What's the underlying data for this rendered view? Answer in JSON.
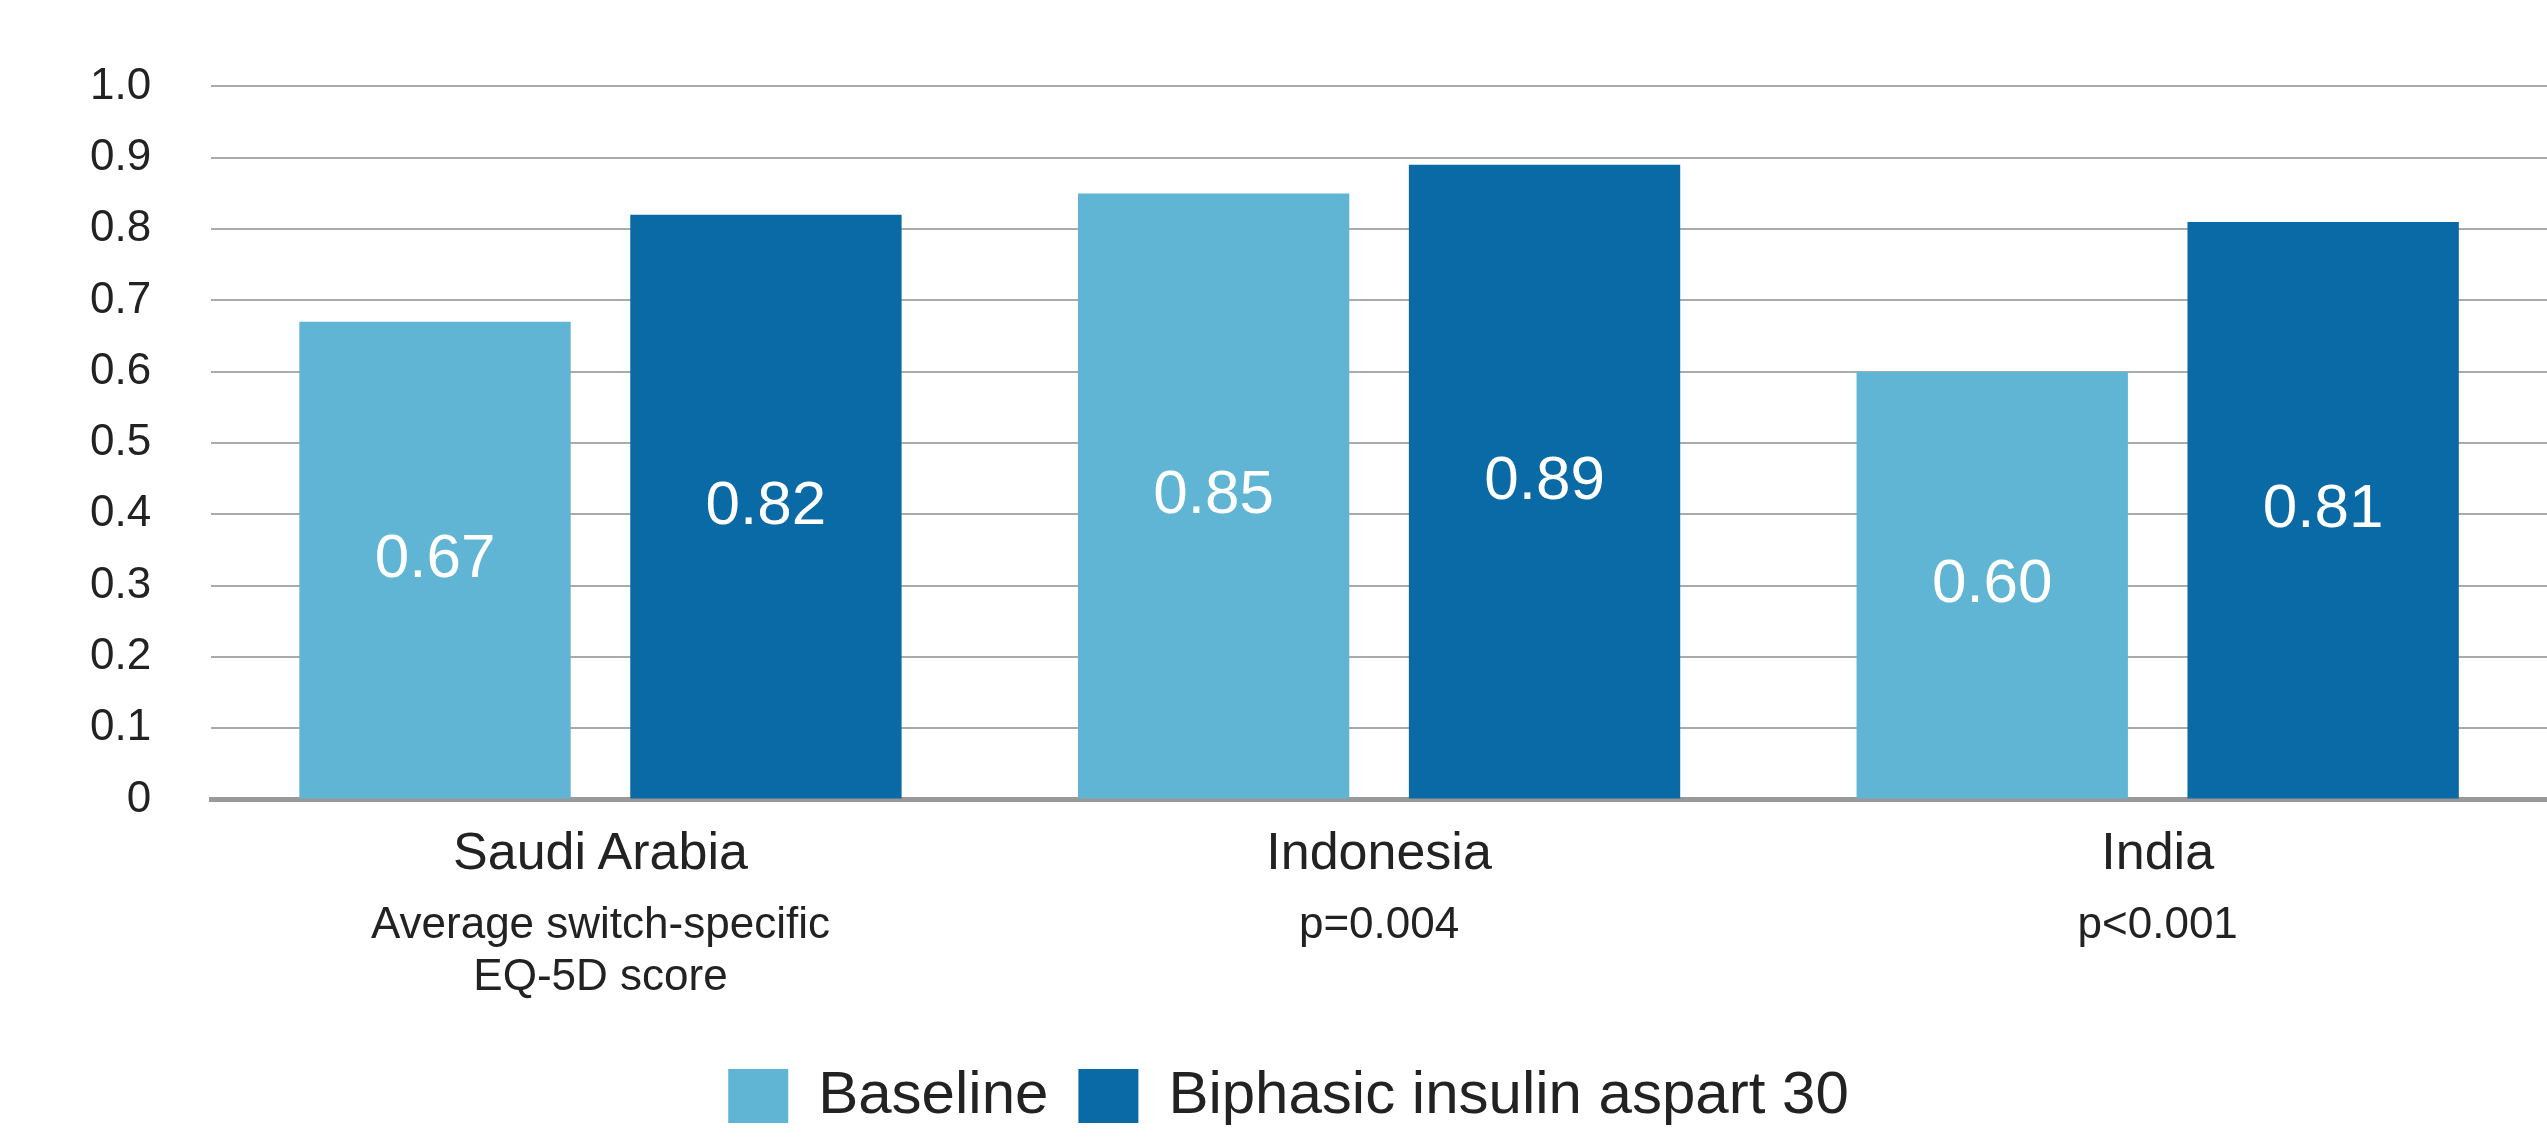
{
  "chart_data": {
    "type": "bar",
    "categories": [
      "Saudi Arabia",
      "Indonesia",
      "India"
    ],
    "series": [
      {
        "name": "Baseline",
        "color": "#5fb5d3",
        "values": [
          0.67,
          0.85,
          0.6
        ],
        "value_labels": [
          "0.67",
          "0.85",
          "0.60"
        ]
      },
      {
        "name": "Biphasic insulin aspart 30",
        "color": "#0a6aa6",
        "values": [
          0.82,
          0.89,
          0.81
        ],
        "value_labels": [
          "0.82",
          "0.89",
          "0.81"
        ]
      }
    ],
    "ylim": [
      0,
      1.0
    ],
    "yticks": [
      0,
      0.1,
      0.2,
      0.3,
      0.4,
      0.5,
      0.6,
      0.7,
      0.8,
      0.9,
      {
        "value": 1.0,
        "label": "1.0"
      }
    ],
    "grid": "y",
    "legend": "bottom",
    "annotations": [
      "Average switch-specific EQ-5D score",
      "p=0.004",
      "p<0.001"
    ]
  }
}
